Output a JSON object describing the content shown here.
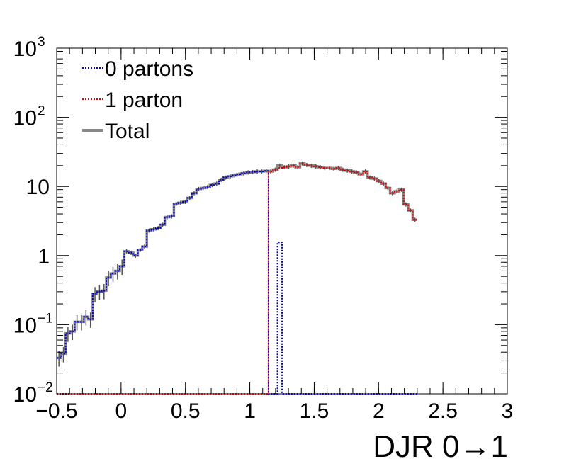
{
  "chart_data": {
    "type": "line",
    "style": "step-histogram",
    "xlabel": "DJR 0→1",
    "ylabel": "",
    "xlim": [
      -0.5,
      3
    ],
    "ylim": [
      0.01,
      1000
    ],
    "yscale": "log",
    "grid": false,
    "legend_position": "top-left",
    "x_ticks": [
      {
        "value": -0.5,
        "label": "−0.5"
      },
      {
        "value": 0,
        "label": "0"
      },
      {
        "value": 0.5,
        "label": "0.5"
      },
      {
        "value": 1,
        "label": "1"
      },
      {
        "value": 1.5,
        "label": "1.5"
      },
      {
        "value": 2,
        "label": "2"
      },
      {
        "value": 2.5,
        "label": "2.5"
      },
      {
        "value": 3,
        "label": "3"
      }
    ],
    "y_ticks": [
      {
        "value": 0.01,
        "base": "10",
        "exp": "−2"
      },
      {
        "value": 0.1,
        "base": "10",
        "exp": "−1"
      },
      {
        "value": 1,
        "base": "1",
        "exp": ""
      },
      {
        "value": 10,
        "base": "10",
        "exp": ""
      },
      {
        "value": 100,
        "base": "10",
        "exp": "2"
      },
      {
        "value": 1000,
        "base": "10",
        "exp": "3"
      }
    ],
    "bin_width": 0.035,
    "x_start": -0.5,
    "series": [
      {
        "name": "0 partons",
        "color": "#0000cc",
        "dash": "dotted",
        "values": [
          0.033,
          0.038,
          0.075,
          0.08,
          0.11,
          0.11,
          0.13,
          0.12,
          0.28,
          0.3,
          0.31,
          0.48,
          0.55,
          0.6,
          0.7,
          1.15,
          1.1,
          1.0,
          1.2,
          1.35,
          2.3,
          2.4,
          2.5,
          2.8,
          3.6,
          3.7,
          5.6,
          5.8,
          6.0,
          6.8,
          8.0,
          9.2,
          9.5,
          9.8,
          10.5,
          11.0,
          12.5,
          13.5,
          14.0,
          14.5,
          15.0,
          15.5,
          16.0,
          16.2,
          16.5,
          16.5,
          16.8,
          0.01,
          0.01,
          1.55,
          0.01,
          0.01,
          0.01,
          0.01,
          0.01,
          0.01,
          0.01,
          0.01,
          0.01,
          0.01,
          0.01,
          0.01,
          0.01,
          0.01,
          0.01,
          0.01,
          0.01,
          0.01,
          0.01,
          0.01,
          0.01,
          0.01,
          0.01,
          0.01,
          0.01,
          0.01,
          0.01,
          0.01,
          0.01,
          0.01
        ]
      },
      {
        "name": "1 parton",
        "color": "#dd0000",
        "dash": "dotted",
        "values": [
          0.01,
          0.01,
          0.01,
          0.01,
          0.01,
          0.01,
          0.01,
          0.01,
          0.01,
          0.01,
          0.01,
          0.01,
          0.01,
          0.01,
          0.01,
          0.01,
          0.01,
          0.01,
          0.01,
          0.01,
          0.01,
          0.01,
          0.01,
          0.01,
          0.01,
          0.01,
          0.01,
          0.01,
          0.01,
          0.01,
          0.01,
          0.01,
          0.01,
          0.01,
          0.01,
          0.01,
          0.01,
          0.01,
          0.01,
          0.01,
          0.01,
          0.01,
          0.01,
          0.01,
          0.01,
          0.01,
          0.01,
          16.5,
          17.5,
          18.5,
          19.0,
          19.5,
          20.0,
          19.0,
          21.5,
          20.5,
          20.0,
          19.5,
          19.0,
          18.5,
          18.5,
          18.0,
          18.5,
          17.5,
          17.0,
          16.5,
          16.0,
          15.0,
          16.5,
          13.5,
          13.0,
          12.0,
          11.0,
          9.5,
          8.0,
          8.5,
          9.0,
          5.5,
          4.5,
          3.3
        ]
      },
      {
        "name": "Total",
        "color": "#888888",
        "dash": "solid",
        "values": [
          0.033,
          0.038,
          0.075,
          0.08,
          0.11,
          0.11,
          0.13,
          0.12,
          0.28,
          0.3,
          0.31,
          0.48,
          0.55,
          0.6,
          0.7,
          1.15,
          1.1,
          1.0,
          1.2,
          1.35,
          2.3,
          2.4,
          2.5,
          2.8,
          3.6,
          3.7,
          5.6,
          5.8,
          6.0,
          6.8,
          8.0,
          9.2,
          9.5,
          9.8,
          10.5,
          11.0,
          12.5,
          13.5,
          14.0,
          14.5,
          15.0,
          15.5,
          16.0,
          16.2,
          16.5,
          16.5,
          16.8,
          16.5,
          17.5,
          20.0,
          19.0,
          19.5,
          20.0,
          19.0,
          21.5,
          20.5,
          20.0,
          19.5,
          19.0,
          18.5,
          18.5,
          18.0,
          18.5,
          17.5,
          17.0,
          16.5,
          16.0,
          15.0,
          16.5,
          13.5,
          13.0,
          12.0,
          11.0,
          9.5,
          8.0,
          8.5,
          9.0,
          5.5,
          4.5,
          3.3
        ]
      }
    ]
  }
}
